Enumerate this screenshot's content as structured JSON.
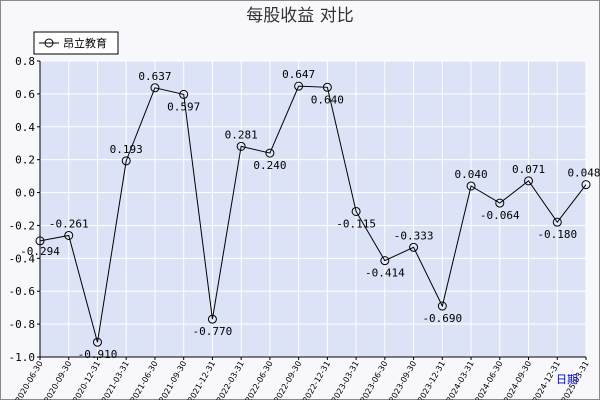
{
  "chart_data": {
    "type": "line",
    "title": "每股收益  对比",
    "xlabel": "",
    "ylabel": "",
    "x_unit_label": "日期",
    "ylim": [
      -1.0,
      0.8
    ],
    "yticks": [
      -1.0,
      -0.8,
      -0.6,
      -0.4,
      -0.2,
      0.0,
      0.2,
      0.4,
      0.6,
      0.8
    ],
    "ytick_labels": [
      "-1.0",
      "-0.8",
      "-0.6",
      "-0.4",
      "-0.2",
      "0.0",
      "0.2",
      "0.4",
      "0.6",
      "0.8"
    ],
    "grid": true,
    "legend_position": "top-left",
    "categories": [
      "2020-06-30",
      "2020-09-30",
      "2020-12-31",
      "2021-03-31",
      "2021-06-30",
      "2021-09-30",
      "2021-12-31",
      "2022-03-31",
      "2022-06-30",
      "2022-09-30",
      "2022-12-31",
      "2023-03-31",
      "2023-06-30",
      "2023-09-30",
      "2023-12-31",
      "2024-03-31",
      "2024-06-30",
      "2024-09-30",
      "2024-12-31",
      "2025-03-31"
    ],
    "series": [
      {
        "name": "昂立教育",
        "color": "#000000",
        "values": [
          -0.294,
          -0.261,
          -0.91,
          0.193,
          0.637,
          0.597,
          -0.77,
          0.281,
          0.24,
          0.647,
          0.64,
          -0.115,
          -0.414,
          -0.333,
          -0.69,
          0.04,
          -0.064,
          0.071,
          -0.18,
          0.048
        ],
        "labels": [
          "-0.294",
          "-0.261",
          "-0.910",
          "0.193",
          "0.637",
          "0.597",
          "-0.770",
          "0.281",
          "0.240",
          "0.647",
          "0.640",
          "-0.115",
          "-0.414",
          "-0.333",
          "-0.690",
          "0.040",
          "-0.064",
          "0.071",
          "-0.180",
          "0.048"
        ]
      }
    ]
  },
  "colors": {
    "plot_background": "#dde3f7",
    "grid": "#ffffff",
    "axis": "#000000",
    "series_line": "#000000"
  }
}
